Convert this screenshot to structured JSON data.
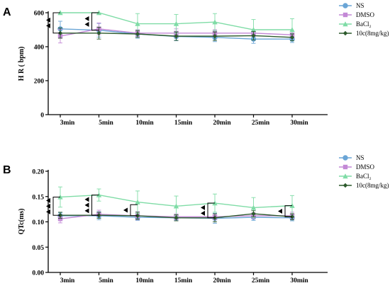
{
  "chart_data": [
    {
      "panel_label": "A",
      "type": "line",
      "title": "",
      "xlabel": "",
      "ylabel": "H R ( bpm)",
      "categories": [
        "3min",
        "5min",
        "10min",
        "15min",
        "20min",
        "25min",
        "30min"
      ],
      "ylim": [
        0,
        600
      ],
      "yticks": [
        0,
        200,
        400,
        600
      ],
      "series": [
        {
          "name": "NS",
          "color": "#6aa5d6",
          "marker": "circle",
          "values": [
            505,
            497,
            475,
            460,
            455,
            445,
            445
          ],
          "errors": [
            45,
            40,
            25,
            25,
            25,
            25,
            20
          ]
        },
        {
          "name": "DMSO",
          "color": "#c389d6",
          "marker": "square",
          "values": [
            462,
            505,
            480,
            480,
            480,
            480,
            470
          ],
          "errors": [
            40,
            35,
            20,
            25,
            20,
            20,
            20
          ]
        },
        {
          "name": "BaCl₂",
          "color": "#7fdca6",
          "marker": "triangle",
          "values": [
            600,
            600,
            535,
            535,
            545,
            500,
            500
          ],
          "errors": [
            0,
            0,
            60,
            55,
            50,
            60,
            65
          ]
        },
        {
          "name": "10c(8mg/kg)",
          "color": "#2c5a2c",
          "marker": "diamond",
          "values": [
            480,
            480,
            475,
            462,
            462,
            465,
            455
          ],
          "errors": [
            30,
            35,
            20,
            25,
            25,
            25,
            20
          ]
        }
      ],
      "brackets": [
        {
          "category": "3min",
          "from": 480,
          "to": 600,
          "arrows": 2
        },
        {
          "category": "5min",
          "from": 497,
          "to": 600,
          "arrows": 2
        }
      ]
    },
    {
      "panel_label": "B",
      "type": "line",
      "title": "",
      "xlabel": "",
      "ylabel": "QTc(ms)",
      "categories": [
        "3min",
        "5min",
        "10min",
        "15min",
        "20min",
        "25min",
        "30min"
      ],
      "ylim": [
        0,
        0.2
      ],
      "yticks": [
        "0.00",
        "0.05",
        "0.10",
        "0.15",
        "0.20"
      ],
      "series": [
        {
          "name": "NS",
          "color": "#6aa5d6",
          "marker": "circle",
          "values": [
            0.112,
            0.112,
            0.109,
            0.108,
            0.107,
            0.109,
            0.108
          ],
          "errors": [
            0.006,
            0.008,
            0.006,
            0.005,
            0.01,
            0.006,
            0.006
          ]
        },
        {
          "name": "DMSO",
          "color": "#c389d6",
          "marker": "square",
          "values": [
            0.106,
            0.115,
            0.112,
            0.11,
            0.11,
            0.112,
            0.112
          ],
          "errors": [
            0.008,
            0.008,
            0.008,
            0.006,
            0.006,
            0.006,
            0.007
          ]
        },
        {
          "name": "BaCl₂",
          "color": "#7fdca6",
          "marker": "triangle",
          "values": [
            0.149,
            0.153,
            0.139,
            0.131,
            0.137,
            0.128,
            0.132
          ],
          "errors": [
            0.02,
            0.012,
            0.022,
            0.02,
            0.018,
            0.02,
            0.02
          ]
        },
        {
          "name": "10c(8mg/kg)",
          "color": "#2c5a2c",
          "marker": "diamond",
          "values": [
            0.113,
            0.113,
            0.112,
            0.108,
            0.108,
            0.116,
            0.11
          ],
          "errors": [
            0.006,
            0.006,
            0.007,
            0.006,
            0.008,
            0.006,
            0.006
          ]
        }
      ],
      "brackets": [
        {
          "category": "3min",
          "from": 0.113,
          "to": 0.149,
          "arrows": 3
        },
        {
          "category": "5min",
          "from": 0.113,
          "to": 0.153,
          "arrows": 3
        },
        {
          "category": "10min",
          "from": 0.112,
          "to": 0.134,
          "arrows": 1
        },
        {
          "category": "20min",
          "from": 0.108,
          "to": 0.137,
          "arrows": 2
        },
        {
          "category": "30min",
          "from": 0.11,
          "to": 0.132,
          "arrows": 1
        }
      ]
    }
  ]
}
